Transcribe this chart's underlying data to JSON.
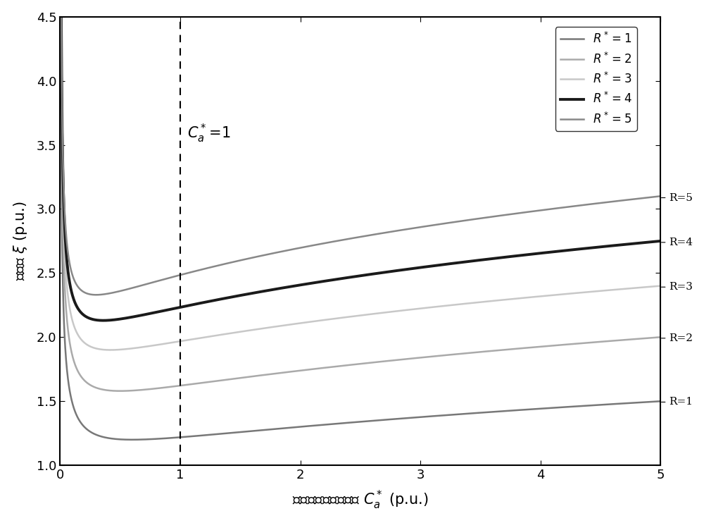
{
  "xlabel_chinese": "栅源极并联辅助电容 $C_a^*$ (p.u.)",
  "ylabel_chinese": "阻尼比 $\\xi$ (p.u.)",
  "xlim": [
    0,
    5
  ],
  "ylim": [
    1.0,
    4.5
  ],
  "xticks": [
    0,
    1,
    2,
    3,
    4,
    5
  ],
  "yticks": [
    1.0,
    1.5,
    2.0,
    2.5,
    3.0,
    3.5,
    4.0,
    4.5
  ],
  "dashed_x": 1.0,
  "background_color": "#ffffff",
  "R_values": [
    1,
    2,
    3,
    4,
    5
  ],
  "line_colors": [
    "#787878",
    "#aaaaaa",
    "#c8c8c8",
    "#1a1a1a",
    "#888888"
  ],
  "line_widths": [
    1.8,
    1.8,
    1.8,
    2.8,
    1.8
  ],
  "legend_labels": [
    "$R^*=1$",
    "$R^*=2$",
    "$R^*=3$",
    "$R^*=4$",
    "$R^*=5$"
  ],
  "right_labels": [
    "R=5",
    "R=4",
    "R=3",
    "R=2",
    "R=1"
  ],
  "figsize": [
    10.0,
    7.42
  ],
  "dpi": 100,
  "Ca_start": 0.005,
  "Ca_end": 5.0,
  "n_points": 2000
}
